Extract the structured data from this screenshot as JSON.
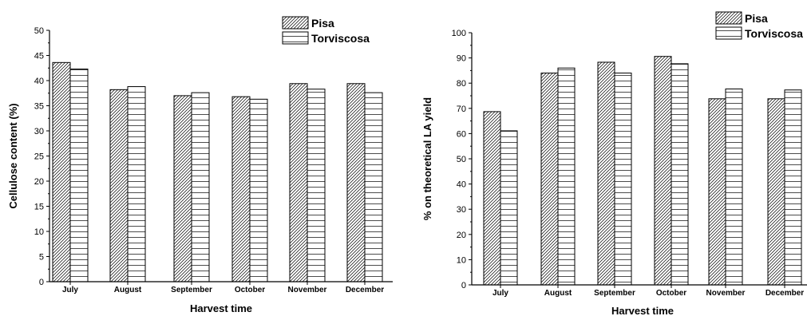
{
  "chart_data": [
    {
      "type": "bar",
      "categories": [
        "July",
        "August",
        "September",
        "October",
        "November",
        "December"
      ],
      "series": [
        {
          "name": "Pisa",
          "values": [
            43.6,
            38.2,
            37.0,
            36.8,
            39.4,
            39.4
          ],
          "pattern": "diagonal"
        },
        {
          "name": "Torviscosa",
          "values": [
            42.3,
            38.8,
            37.6,
            36.3,
            38.3,
            37.6
          ],
          "pattern": "horizontal"
        }
      ],
      "title": "",
      "xlabel": "Harvest time",
      "ylabel": "Cellulose content (%)",
      "ylim": [
        0,
        50
      ],
      "yticks": [
        "0",
        "5",
        "10",
        "15",
        "20",
        "25",
        "30",
        "35",
        "40",
        "45",
        "50"
      ],
      "legend_position": "top-right",
      "grid": false
    },
    {
      "type": "bar",
      "categories": [
        "July",
        "August",
        "September",
        "October",
        "November",
        "December"
      ],
      "series": [
        {
          "name": "Pisa",
          "values": [
            68.7,
            84.0,
            88.3,
            90.6,
            73.8,
            73.8
          ],
          "pattern": "diagonal"
        },
        {
          "name": "Torviscosa",
          "values": [
            61.1,
            86.0,
            84.0,
            87.7,
            77.7,
            77.3
          ],
          "pattern": "horizontal"
        }
      ],
      "title": "",
      "xlabel": "Harvest time",
      "ylabel": "% on theoretical LA yield",
      "ylim": [
        0,
        100
      ],
      "yticks": [
        "0",
        "10",
        "20",
        "30",
        "40",
        "50",
        "60",
        "70",
        "80",
        "90",
        "100"
      ],
      "legend_position": "top-right",
      "grid": false
    }
  ]
}
